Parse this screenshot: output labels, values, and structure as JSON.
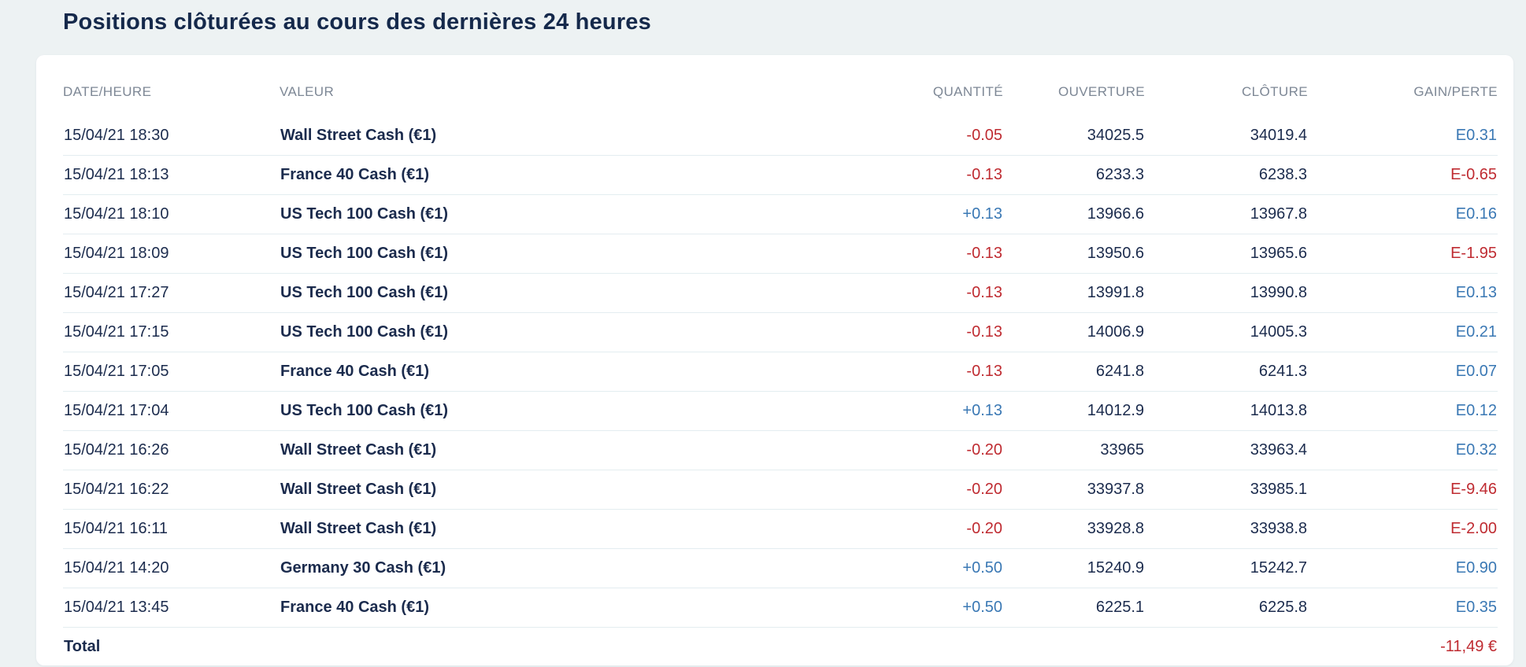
{
  "title": "Positions clôturées au cours des dernières 24 heures",
  "colors": {
    "page_background": "#edf2f3",
    "card_background": "#ffffff",
    "text_navy": "#1b2b4d",
    "header_gray": "#7d8795",
    "positive_blue": "#3a78b4",
    "negative_red": "#bf2b31",
    "row_border": "#e3edf0"
  },
  "table": {
    "columns": [
      {
        "key": "datetime",
        "label": "DATE/HEURE",
        "align": "left"
      },
      {
        "key": "valeur",
        "label": "VALEUR",
        "align": "left"
      },
      {
        "key": "quantite",
        "label": "QUANTITÉ",
        "align": "right"
      },
      {
        "key": "ouverture",
        "label": "OUVERTURE",
        "align": "right"
      },
      {
        "key": "cloture",
        "label": "CLÔTURE",
        "align": "right"
      },
      {
        "key": "gain",
        "label": "GAIN/PERTE",
        "align": "right"
      }
    ],
    "rows": [
      {
        "datetime": "15/04/21 18:30",
        "valeur": "Wall Street Cash (€1)",
        "quantite": "-0.05",
        "quantite_sign": "neg",
        "ouverture": "34025.5",
        "cloture": "34019.4",
        "gain": "E0.31",
        "gain_sign": "pos"
      },
      {
        "datetime": "15/04/21 18:13",
        "valeur": "France 40 Cash (€1)",
        "quantite": "-0.13",
        "quantite_sign": "neg",
        "ouverture": "6233.3",
        "cloture": "6238.3",
        "gain": "E-0.65",
        "gain_sign": "neg"
      },
      {
        "datetime": "15/04/21 18:10",
        "valeur": "US Tech 100 Cash (€1)",
        "quantite": "+0.13",
        "quantite_sign": "pos",
        "ouverture": "13966.6",
        "cloture": "13967.8",
        "gain": "E0.16",
        "gain_sign": "pos"
      },
      {
        "datetime": "15/04/21 18:09",
        "valeur": "US Tech 100 Cash (€1)",
        "quantite": "-0.13",
        "quantite_sign": "neg",
        "ouverture": "13950.6",
        "cloture": "13965.6",
        "gain": "E-1.95",
        "gain_sign": "neg"
      },
      {
        "datetime": "15/04/21 17:27",
        "valeur": "US Tech 100 Cash (€1)",
        "quantite": "-0.13",
        "quantite_sign": "neg",
        "ouverture": "13991.8",
        "cloture": "13990.8",
        "gain": "E0.13",
        "gain_sign": "pos"
      },
      {
        "datetime": "15/04/21 17:15",
        "valeur": "US Tech 100 Cash (€1)",
        "quantite": "-0.13",
        "quantite_sign": "neg",
        "ouverture": "14006.9",
        "cloture": "14005.3",
        "gain": "E0.21",
        "gain_sign": "pos"
      },
      {
        "datetime": "15/04/21 17:05",
        "valeur": "France 40 Cash (€1)",
        "quantite": "-0.13",
        "quantite_sign": "neg",
        "ouverture": "6241.8",
        "cloture": "6241.3",
        "gain": "E0.07",
        "gain_sign": "pos"
      },
      {
        "datetime": "15/04/21 17:04",
        "valeur": "US Tech 100 Cash (€1)",
        "quantite": "+0.13",
        "quantite_sign": "pos",
        "ouverture": "14012.9",
        "cloture": "14013.8",
        "gain": "E0.12",
        "gain_sign": "pos"
      },
      {
        "datetime": "15/04/21 16:26",
        "valeur": "Wall Street Cash (€1)",
        "quantite": "-0.20",
        "quantite_sign": "neg",
        "ouverture": "33965",
        "cloture": "33963.4",
        "gain": "E0.32",
        "gain_sign": "pos"
      },
      {
        "datetime": "15/04/21 16:22",
        "valeur": "Wall Street Cash (€1)",
        "quantite": "-0.20",
        "quantite_sign": "neg",
        "ouverture": "33937.8",
        "cloture": "33985.1",
        "gain": "E-9.46",
        "gain_sign": "neg"
      },
      {
        "datetime": "15/04/21 16:11",
        "valeur": "Wall Street Cash (€1)",
        "quantite": "-0.20",
        "quantite_sign": "neg",
        "ouverture": "33928.8",
        "cloture": "33938.8",
        "gain": "E-2.00",
        "gain_sign": "neg"
      },
      {
        "datetime": "15/04/21 14:20",
        "valeur": "Germany 30 Cash (€1)",
        "quantite": "+0.50",
        "quantite_sign": "pos",
        "ouverture": "15240.9",
        "cloture": "15242.7",
        "gain": "E0.90",
        "gain_sign": "pos"
      },
      {
        "datetime": "15/04/21 13:45",
        "valeur": "France 40 Cash (€1)",
        "quantite": "+0.50",
        "quantite_sign": "pos",
        "ouverture": "6225.1",
        "cloture": "6225.8",
        "gain": "E0.35",
        "gain_sign": "pos"
      }
    ],
    "total_label": "Total",
    "total_value": "-11,49 €",
    "total_sign": "neg"
  }
}
